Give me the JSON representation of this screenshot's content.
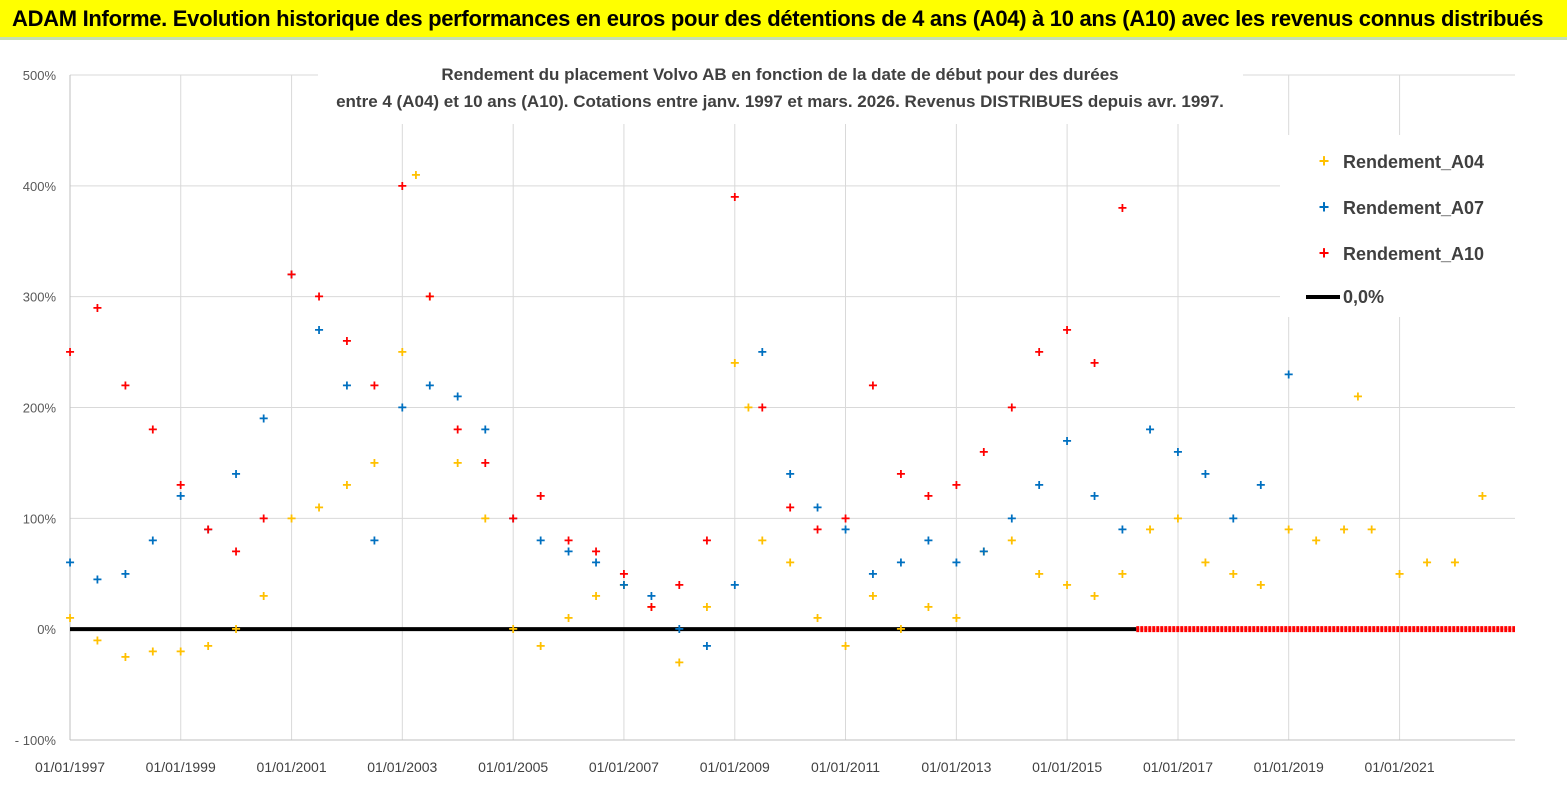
{
  "header": {
    "banner": "ADAM Informe. Evolution historique des performances en euros pour des détentions de 4 ans (A04) à 10 ans (A10) avec les revenus connus distribués"
  },
  "colors": {
    "banner_bg": "#ffff00",
    "A04": "#ffc000",
    "A07": "#0070c0",
    "A10": "#ff0000",
    "zero_line": "#000000",
    "grid": "#d9d9d9"
  },
  "chart_data": {
    "type": "scatter",
    "title_line1": "Rendement du placement Volvo AB en fonction de la date de début pour des durées",
    "title_line2": "entre 4 (A04) et 10 ans (A10). Cotations entre janv. 1997 et mars. 2026. Revenus DISTRIBUES depuis avr. 1997.",
    "xlabel": "",
    "ylabel": "",
    "x_range": [
      "1997-01-01",
      "2023-02-01"
    ],
    "ylim": [
      -100,
      500
    ],
    "y_ticks": [
      -100,
      0,
      100,
      200,
      300,
      400,
      500
    ],
    "y_tick_labels": [
      "- 100%",
      "0%",
      "100%",
      "200%",
      "300%",
      "400%",
      "500%"
    ],
    "x_tick_labels": [
      "01/01/1997",
      "01/01/1999",
      "01/01/2001",
      "01/01/2003",
      "01/01/2005",
      "01/01/2007",
      "01/01/2009",
      "01/01/2011",
      "01/01/2013",
      "01/01/2015",
      "01/01/2017",
      "01/01/2019",
      "01/01/2021"
    ],
    "grid": "horizontal and vertical",
    "legend_position": "top-right",
    "series": [
      {
        "name": "Rendement_A04",
        "key": "A04",
        "x": [
          "1997-01",
          "1997-07",
          "1998-01",
          "1998-07",
          "1999-01",
          "1999-07",
          "2000-01",
          "2000-07",
          "2001-01",
          "2001-07",
          "2002-01",
          "2002-07",
          "2003-01",
          "2003-04",
          "2003-07",
          "2004-01",
          "2004-07",
          "2005-01",
          "2005-07",
          "2006-01",
          "2006-07",
          "2007-01",
          "2007-07",
          "2008-01",
          "2008-07",
          "2009-01",
          "2009-04",
          "2009-07",
          "2010-01",
          "2010-07",
          "2011-01",
          "2011-07",
          "2012-01",
          "2012-07",
          "2013-01",
          "2013-07",
          "2014-01",
          "2014-07",
          "2015-01",
          "2015-07",
          "2016-01",
          "2016-07",
          "2017-01",
          "2017-07",
          "2018-01",
          "2018-07",
          "2019-01",
          "2019-07",
          "2020-01",
          "2020-04",
          "2020-07",
          "2021-01",
          "2021-07",
          "2022-01",
          "2022-07"
        ],
        "y": [
          10,
          -10,
          -25,
          -20,
          -20,
          -15,
          0,
          30,
          100,
          110,
          130,
          150,
          250,
          410,
          300,
          150,
          100,
          0,
          -15,
          10,
          30,
          40,
          20,
          -30,
          20,
          240,
          200,
          80,
          60,
          10,
          -15,
          30,
          0,
          20,
          10,
          70,
          80,
          50,
          40,
          30,
          50,
          90,
          100,
          60,
          50,
          40,
          90,
          80,
          90,
          210,
          90,
          50,
          60,
          60,
          120
        ]
      },
      {
        "name": "Rendement_A07",
        "key": "A07",
        "x": [
          "1997-01",
          "1997-07",
          "1998-01",
          "1998-07",
          "1999-01",
          "1999-07",
          "2000-01",
          "2000-07",
          "2001-01",
          "2001-07",
          "2002-01",
          "2002-07",
          "2003-01",
          "2003-07",
          "2004-01",
          "2004-07",
          "2005-01",
          "2005-07",
          "2006-01",
          "2006-07",
          "2007-01",
          "2007-07",
          "2008-01",
          "2008-07",
          "2009-01",
          "2009-07",
          "2010-01",
          "2010-07",
          "2011-01",
          "2011-07",
          "2012-01",
          "2012-07",
          "2013-01",
          "2013-07",
          "2014-01",
          "2014-07",
          "2015-01",
          "2015-07",
          "2016-01",
          "2016-07",
          "2017-01",
          "2017-07",
          "2018-01",
          "2018-07",
          "2019-01"
        ],
        "y": [
          60,
          45,
          50,
          80,
          120,
          90,
          140,
          190,
          320,
          270,
          220,
          80,
          200,
          220,
          210,
          180,
          100,
          80,
          70,
          60,
          40,
          30,
          0,
          -15,
          40,
          250,
          140,
          110,
          90,
          50,
          60,
          80,
          60,
          70,
          100,
          130,
          170,
          120,
          90,
          180,
          160,
          140,
          100,
          130,
          230
        ]
      },
      {
        "name": "Rendement_A10",
        "key": "A10",
        "x": [
          "1997-01",
          "1997-07",
          "1998-01",
          "1998-07",
          "1999-01",
          "1999-07",
          "2000-01",
          "2000-07",
          "2001-01",
          "2001-07",
          "2002-01",
          "2002-07",
          "2003-01",
          "2003-07",
          "2004-01",
          "2004-07",
          "2005-01",
          "2005-07",
          "2006-01",
          "2006-07",
          "2007-01",
          "2007-07",
          "2008-01",
          "2008-07",
          "2009-01",
          "2009-07",
          "2010-01",
          "2010-07",
          "2011-01",
          "2011-07",
          "2012-01",
          "2012-07",
          "2013-01",
          "2013-07",
          "2014-01",
          "2014-07",
          "2015-01",
          "2015-07",
          "2016-01"
        ],
        "y": [
          250,
          290,
          220,
          180,
          130,
          90,
          70,
          100,
          320,
          300,
          260,
          220,
          400,
          300,
          180,
          150,
          100,
          120,
          80,
          70,
          50,
          20,
          40,
          80,
          390,
          200,
          110,
          90,
          100,
          220,
          140,
          120,
          130,
          160,
          200,
          250,
          270,
          240,
          380
        ]
      },
      {
        "name": "0,0%",
        "key": "zero",
        "y": 0
      }
    ]
  }
}
